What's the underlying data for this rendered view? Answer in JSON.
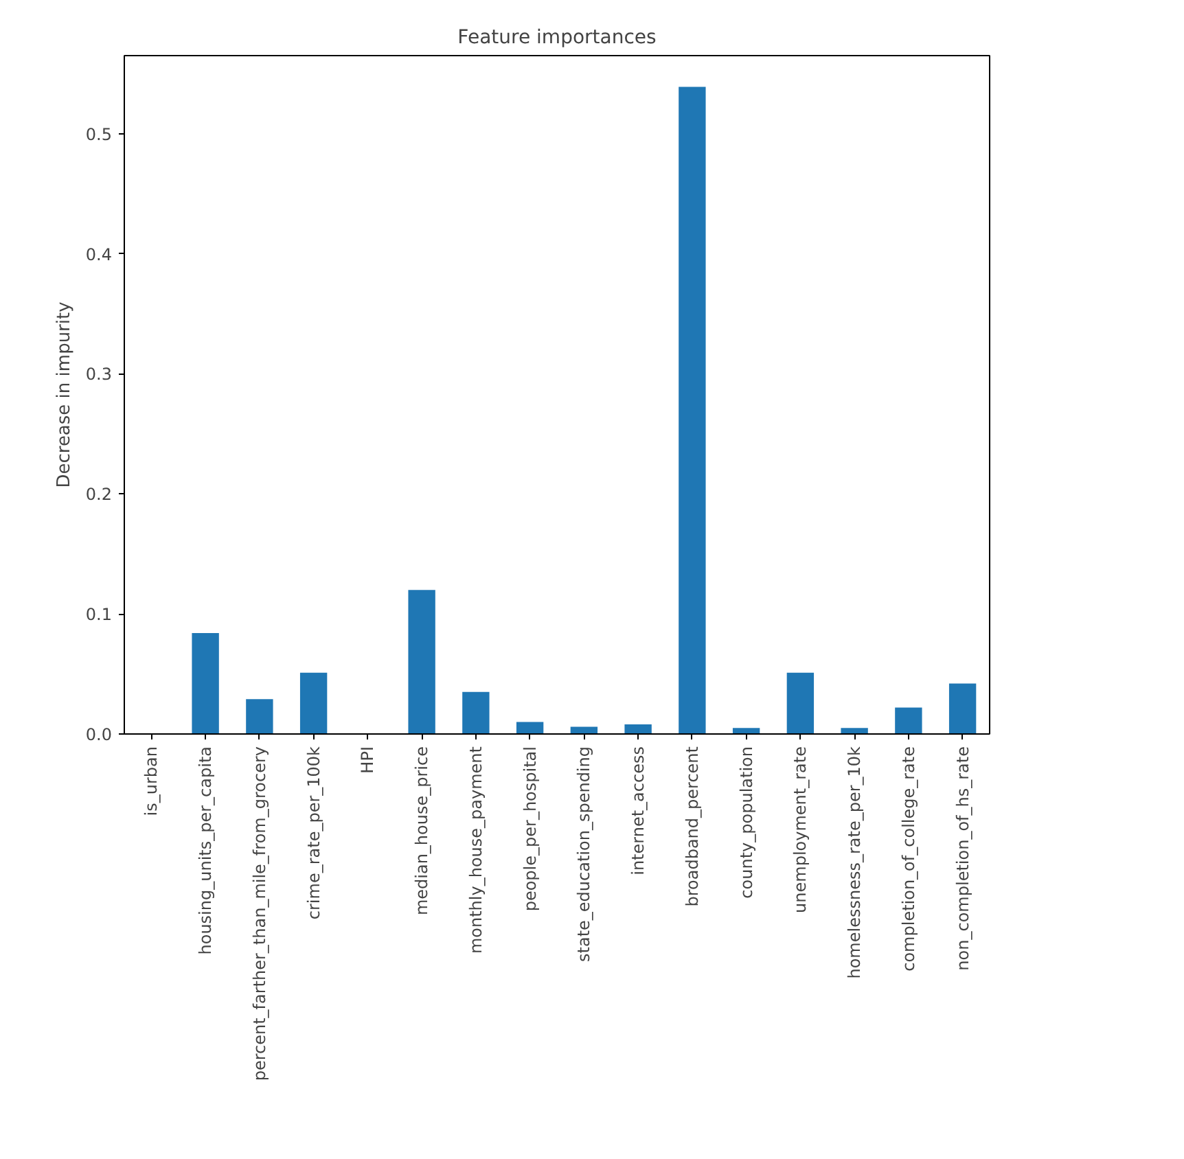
{
  "chart_data": {
    "type": "bar",
    "title": "Feature importances",
    "ylabel": "Decrease in impurity",
    "categories": [
      "is_urban",
      "housing_units_per_capita",
      "percent_farther_than_mile_from_grocery",
      "crime_rate_per_100k",
      "HPI",
      "median_house_price",
      "monthly_house_payment",
      "people_per_hospital",
      "state_education_spending",
      "internet_access",
      "broadband_percent",
      "county_population",
      "unemployment_rate",
      "homelessness_rate_per_10k",
      "completion_of_college_rate",
      "non_completion_of_hs_rate"
    ],
    "values": [
      0.0,
      0.084,
      0.029,
      0.051,
      0.0,
      0.12,
      0.035,
      0.01,
      0.006,
      0.008,
      0.539,
      0.005,
      0.051,
      0.005,
      0.022,
      0.042
    ],
    "color": "#1f77b4",
    "ylim": [
      0,
      0.565
    ],
    "yticks": [
      {
        "value": 0,
        "label": "0.0"
      },
      0.1,
      0.2,
      0.3,
      0.4,
      0.5
    ],
    "grid": false
  }
}
